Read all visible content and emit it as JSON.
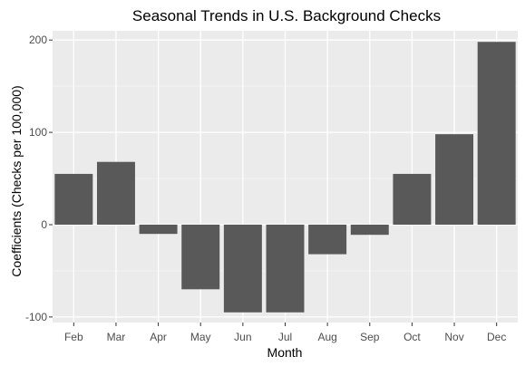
{
  "chart_data": {
    "type": "bar",
    "title": "Seasonal Trends in U.S. Background Checks",
    "xlabel": "Month",
    "ylabel": "Coefficients (Checks per 100,000)",
    "categories": [
      "Feb",
      "Mar",
      "Apr",
      "May",
      "Jun",
      "Jul",
      "Aug",
      "Sep",
      "Oct",
      "Nov",
      "Dec"
    ],
    "values": [
      55,
      68,
      -10,
      -70,
      -95,
      -95,
      -32,
      -11,
      55,
      98,
      198
    ],
    "ylim": [
      -106,
      210
    ],
    "yticks": [
      -100,
      0,
      100,
      200
    ],
    "yticklabels": [
      "-100",
      "0",
      "100",
      "200"
    ],
    "grid": true,
    "colors": {
      "bar": "#595959",
      "panel": "#ebebeb",
      "grid_major": "#ffffff",
      "grid_minor": "#f5f5f5",
      "background": "#ffffff"
    }
  }
}
